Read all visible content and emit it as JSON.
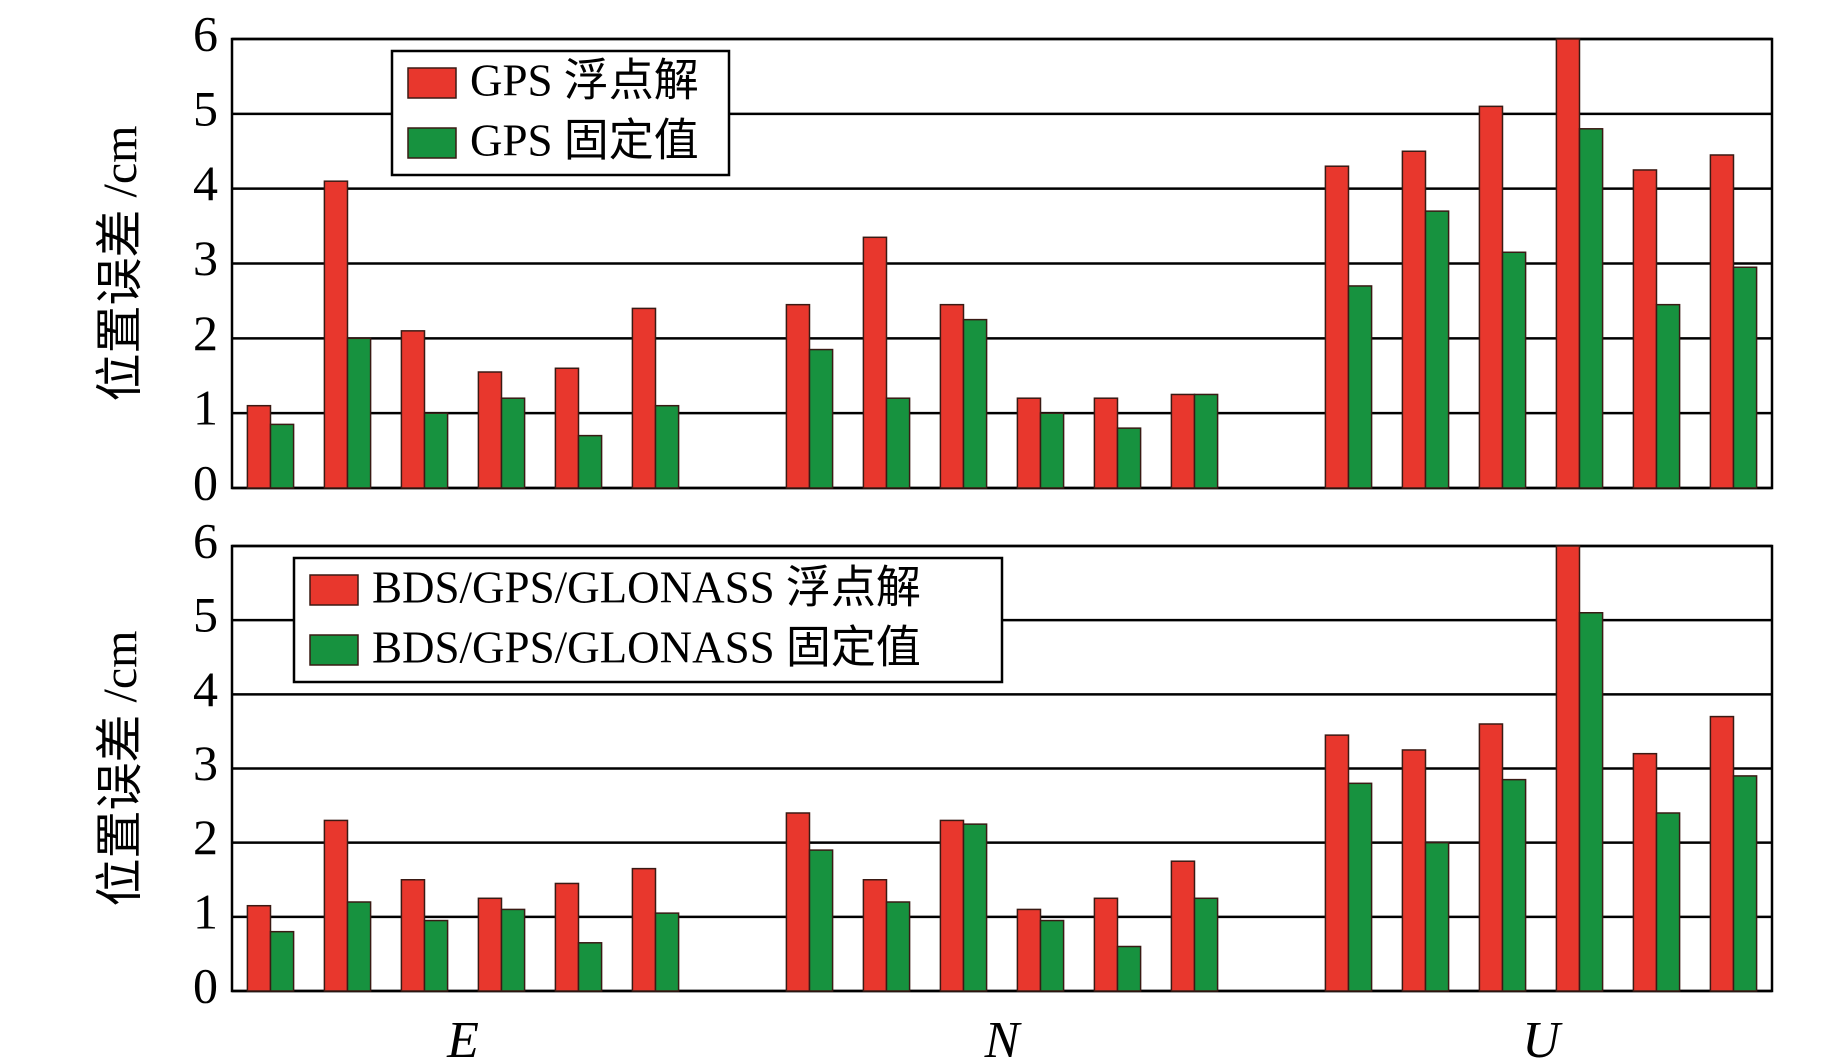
{
  "chart_data": [
    {
      "type": "bar",
      "ylabel": "位置误差 /cm",
      "ylim": [
        0,
        6
      ],
      "yticks": [
        0,
        1,
        2,
        3,
        4,
        5,
        6
      ],
      "grid": true,
      "legend": "upper left",
      "series": [
        {
          "name": "GPS 浮点解",
          "color": "#e8372d",
          "values": [
            [
              1.1,
              4.1,
              2.1,
              1.55,
              1.6,
              2.4
            ],
            [
              2.45,
              3.35,
              2.45,
              1.2,
              1.2,
              1.25
            ],
            [
              4.3,
              4.5,
              5.1,
              6.0,
              4.25,
              4.45
            ]
          ]
        },
        {
          "name": "GPS 固定值",
          "color": "#17923f",
          "values": [
            [
              0.85,
              2.0,
              1.0,
              1.2,
              0.7,
              1.1
            ],
            [
              1.85,
              1.2,
              2.25,
              1.0,
              0.8,
              1.25
            ],
            [
              2.7,
              3.7,
              3.15,
              4.8,
              2.45,
              2.95
            ]
          ]
        }
      ]
    },
    {
      "type": "bar",
      "ylabel": "位置误差 /cm",
      "ylim": [
        0,
        6
      ],
      "yticks": [
        0,
        1,
        2,
        3,
        4,
        5,
        6
      ],
      "grid": true,
      "legend": "upper left",
      "categories": [
        "E",
        "N",
        "U"
      ],
      "series": [
        {
          "name": "BDS/GPS/GLONASS 浮点解",
          "color": "#e8372d",
          "values": [
            [
              1.15,
              2.3,
              1.5,
              1.25,
              1.45,
              1.65
            ],
            [
              2.4,
              1.5,
              2.3,
              1.1,
              1.25,
              1.75
            ],
            [
              3.45,
              3.25,
              3.6,
              6.0,
              3.2,
              3.7
            ]
          ]
        },
        {
          "name": "BDS/GPS/GLONASS 固定值",
          "color": "#17923f",
          "values": [
            [
              0.8,
              1.2,
              0.95,
              1.1,
              0.65,
              1.05
            ],
            [
              1.9,
              1.2,
              2.25,
              0.95,
              0.6,
              1.25
            ],
            [
              2.8,
              2.0,
              2.85,
              5.1,
              2.4,
              2.9
            ]
          ]
        }
      ]
    }
  ]
}
